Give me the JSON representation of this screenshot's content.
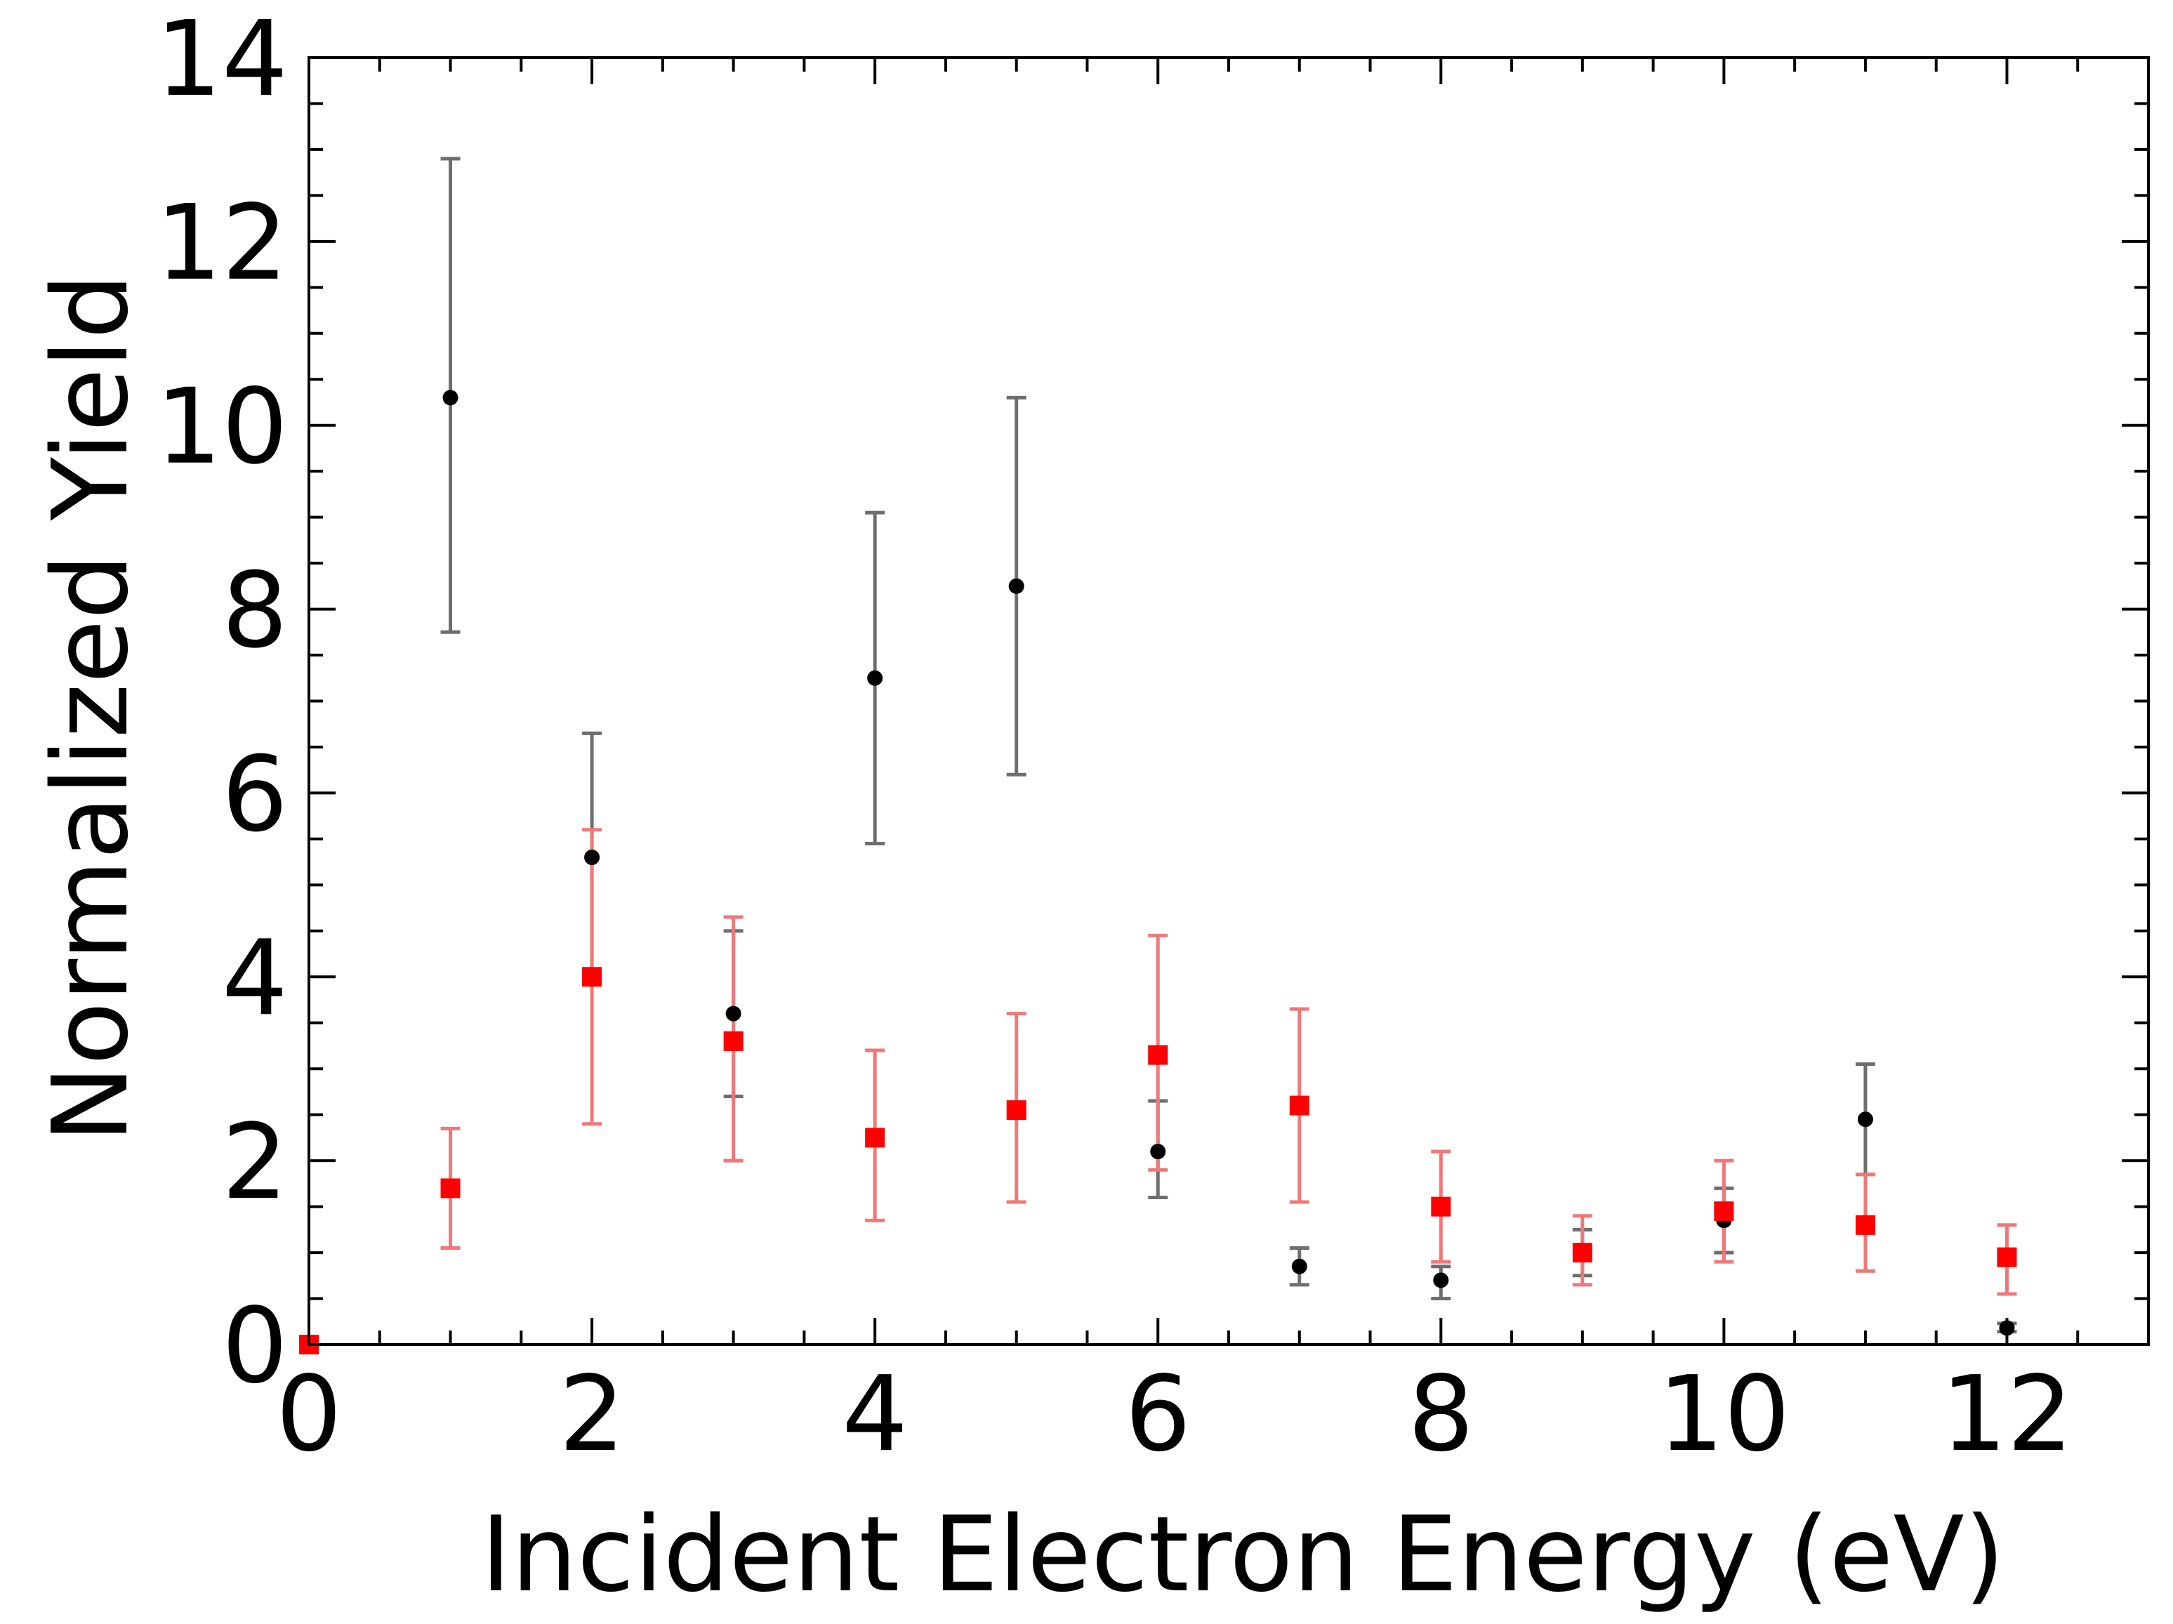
{
  "chart_data": {
    "type": "scatter",
    "title": "",
    "xlabel": "Incident Electron Energy (eV)",
    "ylabel": "Normalized Yield",
    "xlim": [
      0,
      13
    ],
    "ylim": [
      0,
      14
    ],
    "x_ticks": [
      0,
      2,
      4,
      6,
      8,
      10,
      12
    ],
    "x_tick_labels": [
      "0",
      "2",
      "4",
      "6",
      "8",
      "10",
      "12"
    ],
    "y_ticks": [
      0,
      2,
      4,
      6,
      8,
      10,
      12,
      14
    ],
    "y_tick_labels": [
      "0",
      "2",
      "4",
      "6",
      "8",
      "10",
      "12",
      "14"
    ],
    "x_minor_step": 0.5,
    "y_minor_step": 0.5,
    "grid": false,
    "legend": "none",
    "series": [
      {
        "marker": "circle",
        "color": "#000000",
        "errorbar_color": "#6e6e6e",
        "points": [
          {
            "x": 1,
            "y": 10.3,
            "lo": 7.75,
            "hi": 12.9
          },
          {
            "x": 2,
            "y": 5.3,
            "lo": 4.0,
            "hi": 6.65
          },
          {
            "x": 3,
            "y": 3.6,
            "lo": 2.7,
            "hi": 4.5
          },
          {
            "x": 4,
            "y": 7.25,
            "lo": 5.45,
            "hi": 9.05
          },
          {
            "x": 5,
            "y": 8.25,
            "lo": 6.2,
            "hi": 10.3
          },
          {
            "x": 6,
            "y": 2.1,
            "lo": 1.6,
            "hi": 2.65
          },
          {
            "x": 7,
            "y": 0.85,
            "lo": 0.65,
            "hi": 1.05
          },
          {
            "x": 8,
            "y": 0.7,
            "lo": 0.5,
            "hi": 0.85
          },
          {
            "x": 9,
            "y": 1.0,
            "lo": 0.75,
            "hi": 1.25
          },
          {
            "x": 10,
            "y": 1.35,
            "lo": 1.0,
            "hi": 1.7
          },
          {
            "x": 11,
            "y": 2.45,
            "lo": 1.85,
            "hi": 3.05
          },
          {
            "x": 12,
            "y": 0.18,
            "lo": 0.14,
            "hi": 0.23
          }
        ]
      },
      {
        "marker": "square",
        "color": "#ff0000",
        "errorbar_color": "#f07878",
        "points": [
          {
            "x": 0,
            "y": 0.0,
            "lo": 0.0,
            "hi": 0.0
          },
          {
            "x": 1,
            "y": 1.7,
            "lo": 1.05,
            "hi": 2.35
          },
          {
            "x": 2,
            "y": 4.0,
            "lo": 2.4,
            "hi": 5.6
          },
          {
            "x": 3,
            "y": 3.3,
            "lo": 2.0,
            "hi": 4.65
          },
          {
            "x": 4,
            "y": 2.25,
            "lo": 1.35,
            "hi": 3.2
          },
          {
            "x": 5,
            "y": 2.55,
            "lo": 1.55,
            "hi": 3.6
          },
          {
            "x": 6,
            "y": 3.15,
            "lo": 1.9,
            "hi": 4.45
          },
          {
            "x": 7,
            "y": 2.6,
            "lo": 1.55,
            "hi": 3.65
          },
          {
            "x": 8,
            "y": 1.5,
            "lo": 0.9,
            "hi": 2.1
          },
          {
            "x": 9,
            "y": 1.0,
            "lo": 0.65,
            "hi": 1.4
          },
          {
            "x": 10,
            "y": 1.45,
            "lo": 0.9,
            "hi": 2.0
          },
          {
            "x": 11,
            "y": 1.3,
            "lo": 0.8,
            "hi": 1.85
          },
          {
            "x": 12,
            "y": 0.95,
            "lo": 0.55,
            "hi": 1.3
          }
        ]
      }
    ]
  }
}
